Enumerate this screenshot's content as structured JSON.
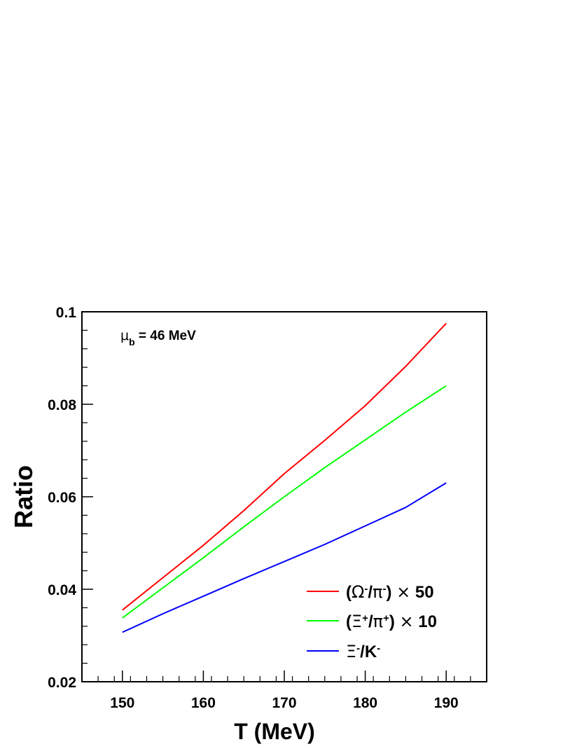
{
  "chart_data": {
    "type": "line",
    "xlabel": "T (MeV)",
    "ylabel": "Ratio",
    "xlim": [
      145,
      195
    ],
    "ylim": [
      0.02,
      0.1
    ],
    "x_ticks": [
      150,
      160,
      170,
      180,
      190
    ],
    "x_tick_labels": [
      "150",
      "160",
      "170",
      "180",
      "190"
    ],
    "y_ticks": [
      0.02,
      0.04,
      0.06,
      0.08,
      0.1
    ],
    "y_tick_labels": [
      "0.02",
      "0.04",
      "0.06",
      "0.08",
      "0.1"
    ],
    "grid": false,
    "legend_position": "bottom-right",
    "annotation": {
      "symbol": "μ",
      "sub": "b",
      "text": " = 46 MeV"
    },
    "x": [
      150,
      155,
      160,
      165,
      170,
      175,
      180,
      185,
      190
    ],
    "series": [
      {
        "name": "(Ω-/π-) × 50",
        "color": "#ff0000",
        "values": [
          0.0355,
          0.0425,
          0.0495,
          0.057,
          0.065,
          0.0722,
          0.0797,
          0.0882,
          0.0975
        ],
        "legend": {
          "parts": [
            [
              "(",
              "t"
            ],
            [
              "Ω",
              "s"
            ],
            [
              "-",
              "sup"
            ],
            [
              "/",
              "t"
            ],
            [
              "π",
              "s"
            ],
            [
              "-",
              "sup"
            ],
            [
              ") ",
              "t"
            ],
            [
              "×",
              "s"
            ],
            [
              " 50",
              "t"
            ]
          ]
        }
      },
      {
        "name": "(Ξ+/π+) × 10",
        "color": "#00ff00",
        "values": [
          0.0338,
          0.0403,
          0.0468,
          0.0535,
          0.06,
          0.0663,
          0.0723,
          0.0783,
          0.084
        ],
        "legend": {
          "parts": [
            [
              "(",
              "t"
            ],
            [
              "Ξ",
              "s"
            ],
            [
              "+",
              "sup"
            ],
            [
              "/",
              "t"
            ],
            [
              "π",
              "s"
            ],
            [
              "+",
              "sup"
            ],
            [
              ") ",
              "t"
            ],
            [
              "×",
              "s"
            ],
            [
              " 10",
              "t"
            ]
          ]
        }
      },
      {
        "name": "Ξ-/K-",
        "color": "#0000ff",
        "values": [
          0.0307,
          0.0347,
          0.0385,
          0.0423,
          0.046,
          0.0497,
          0.0537,
          0.0577,
          0.063
        ],
        "legend": {
          "parts": [
            [
              "Ξ",
              "s"
            ],
            [
              "-",
              "sup"
            ],
            [
              "/K",
              "t"
            ],
            [
              "-",
              "sup"
            ]
          ]
        }
      }
    ]
  }
}
